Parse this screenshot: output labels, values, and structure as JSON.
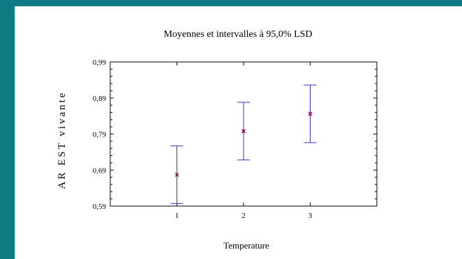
{
  "chart_data": {
    "type": "scatter",
    "title": "Moyennes et intervalles à 95,0% LSD",
    "xlabel": "Temperature",
    "ylabel": "AR EST vivante",
    "x_tick_labels": [
      "1",
      "2",
      "3"
    ],
    "y_tick_labels": [
      "0,59",
      "0,69",
      "0,79",
      "0,89",
      "0,99"
    ],
    "y_ticks": [
      0.59,
      0.69,
      0.79,
      0.89,
      0.99
    ],
    "ylim": [
      0.59,
      0.99
    ],
    "xlim": [
      0,
      4
    ],
    "grid": false,
    "series": [
      {
        "points": [
          {
            "x": 1,
            "mean": 0.677,
            "lower": 0.597,
            "upper": 0.757
          },
          {
            "x": 2,
            "mean": 0.798,
            "lower": 0.718,
            "upper": 0.878
          },
          {
            "x": 3,
            "mean": 0.846,
            "lower": 0.766,
            "upper": 0.926
          }
        ],
        "color": "#3333cc",
        "marker_color": "#8a0055"
      }
    ]
  }
}
